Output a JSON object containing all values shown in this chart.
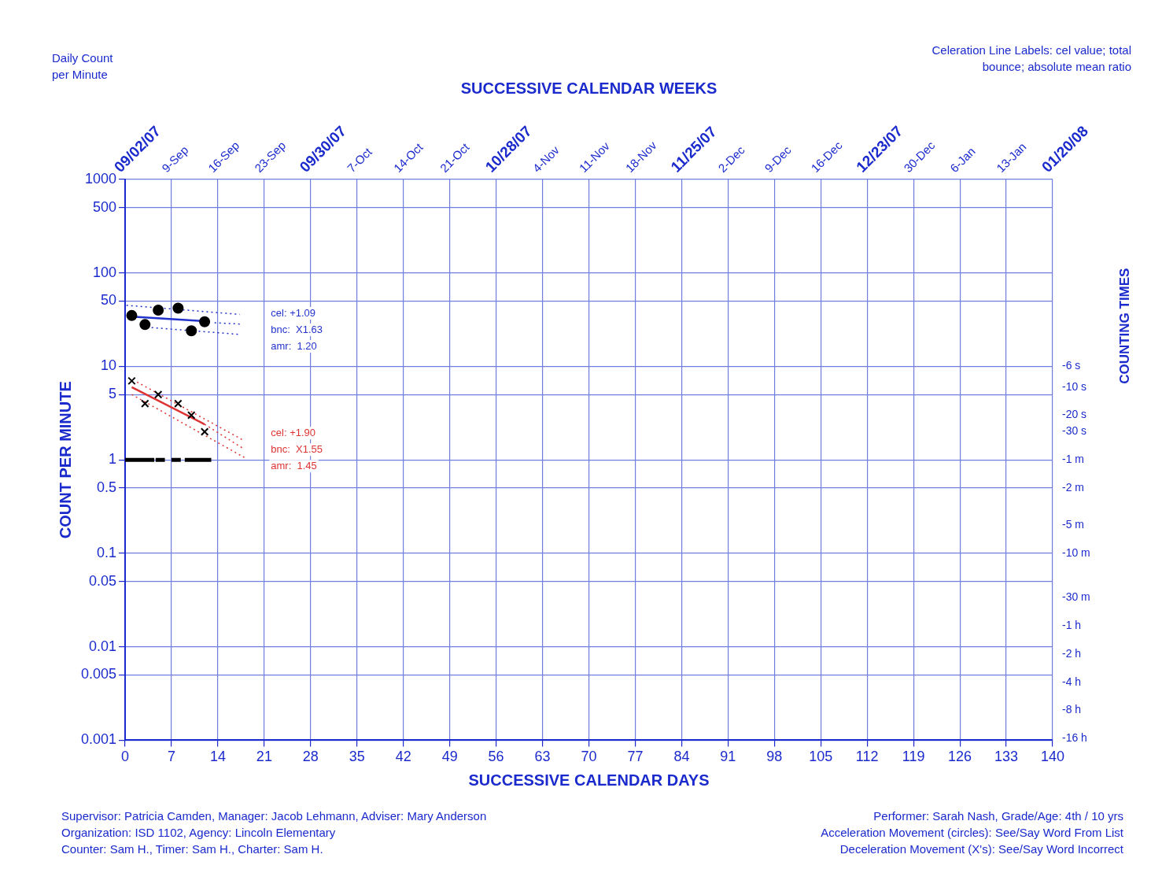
{
  "chart_data": {
    "type": "scatter",
    "xlabel": "SUCCESSIVE CALENDAR DAYS",
    "x2label": "SUCCESSIVE CALENDAR WEEKS",
    "ylabel": "COUNT PER MINUTE",
    "y2label": "COUNTING TIMES",
    "log": "y",
    "grid": true,
    "legend": false,
    "xlim": [
      0,
      140
    ],
    "xticks": [
      0,
      7,
      14,
      21,
      28,
      35,
      42,
      49,
      56,
      63,
      70,
      77,
      84,
      91,
      98,
      105,
      112,
      119,
      126,
      133,
      140
    ],
    "ylim": [
      0.001,
      1000
    ],
    "yticks": [
      1000,
      500,
      100,
      50,
      10,
      5,
      1,
      0.5,
      0.1,
      0.05,
      0.01,
      0.005,
      0.001
    ],
    "series": [
      {
        "marker": "circle",
        "color": "#000000",
        "x": [
          1,
          3,
          5,
          8,
          10,
          12
        ],
        "values": [
          35,
          28,
          40,
          42,
          24,
          30
        ]
      },
      {
        "marker": "cross",
        "color": "#000000",
        "x": [
          1,
          3,
          5,
          8,
          10,
          12
        ],
        "values": [
          7,
          4,
          5,
          4,
          3,
          2
        ]
      },
      {
        "type": "line",
        "color": "#2233cc",
        "line_style": "solid",
        "x": [
          1,
          12
        ],
        "values": [
          34,
          30.5
        ]
      },
      {
        "type": "line",
        "color": "#2233cc",
        "line_style": "dotted",
        "x": [
          0.2,
          17.3
        ],
        "values": [
          45,
          36
        ]
      },
      {
        "type": "line",
        "color": "#2233cc",
        "line_style": "dotted",
        "x": [
          4,
          17.3
        ],
        "values": [
          26,
          22
        ]
      },
      {
        "type": "line",
        "color": "#2233cc",
        "line_style": "dotted",
        "x": [
          13.5,
          17.3
        ],
        "values": [
          29.3,
          28.4
        ]
      },
      {
        "type": "line",
        "color": "#dd3333",
        "line_style": "solid",
        "x": [
          1,
          12
        ],
        "values": [
          6,
          2.4
        ]
      },
      {
        "type": "line",
        "color": "#dd3333",
        "line_style": "dotted",
        "x": [
          1.8,
          18
        ],
        "values": [
          6.8,
          1.6
        ]
      },
      {
        "type": "line",
        "color": "#dd3333",
        "line_style": "dotted",
        "x": [
          1,
          18
        ],
        "values": [
          5,
          1.06
        ]
      },
      {
        "type": "line",
        "color": "#dd3333",
        "line_style": "dotted",
        "x": [
          12,
          18
        ],
        "values": [
          2.4,
          1.3
        ]
      },
      {
        "type": "line",
        "color": "#000000",
        "line_style": "solid",
        "x": [
          0,
          4.4,
          4.5,
          4.6,
          6,
          6.5,
          7,
          8.4,
          8.7,
          9,
          13
        ],
        "values": [
          1,
          1,
          null,
          1,
          1,
          null,
          1,
          1,
          null,
          1,
          1
        ]
      }
    ],
    "annotations": [
      "Daily Count per Minute",
      "Celeration Line Labels: cel value; total bounce; absolute mean ratio",
      "Supervisor: Patricia Camden, Manager: Jacob Lehmann, Adviser: Mary Anderson",
      "Organization: ISD 1102, Agency: Lincoln Elementary",
      "Counter: Sam H., Timer: Sam H., Charter: Sam H.",
      "Performer: Sarah Nash, Grade/Age: 4th / 10 yrs",
      "Acceleration Movement (circles): See/Say Word From List",
      "Deceleration Movement (X's): See/Say Word Incorrect",
      "cel: +1.09",
      "bnc:  X1.63",
      "amr:  1.20",
      "cel: +1.90",
      "bnc:  X1.55",
      "amr:  1.45",
      "-6 s",
      "-10 s",
      "-20 s",
      "-30 s",
      "-1 m",
      "-2 m",
      "-5 m",
      "-10 m",
      "-30 m",
      "-1 h",
      "-2 h",
      "-4 h",
      "-8 h",
      "-16 h",
      "09/02/07",
      "9-Sep",
      "16-Sep",
      "23-Sep",
      "09/30/07",
      "7-Oct",
      "14-Oct",
      "21-Oct",
      "10/28/07",
      "4-Nov",
      "11-Nov",
      "18-Nov",
      "11/25/07",
      "2-Dec",
      "9-Dec",
      "16-Dec",
      "12/23/07",
      "30-Dec",
      "6-Jan",
      "13-Jan",
      "01/20/08"
    ]
  }
}
